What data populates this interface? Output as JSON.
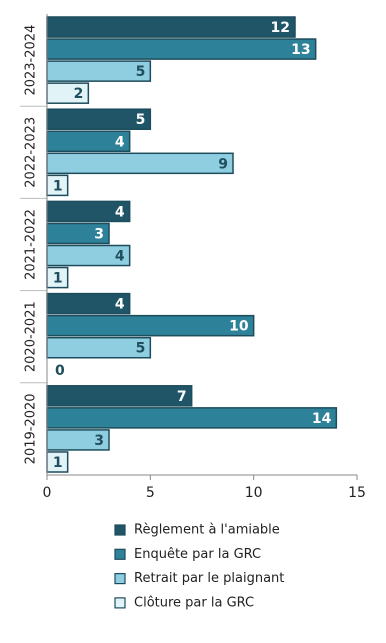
{
  "chart_data": {
    "type": "hbar",
    "categories": [
      "2023-2024",
      "2022-2023",
      "2021-2022",
      "2020-2021",
      "2019-2020"
    ],
    "series": [
      {
        "name": "Règlement à l'amiable",
        "color": "#1f5566",
        "label_color": "#ffffff",
        "values": [
          12,
          5,
          4,
          4,
          7
        ]
      },
      {
        "name": "Enquête par la GRC",
        "color": "#2d8199",
        "label_color": "#ffffff",
        "values": [
          13,
          4,
          3,
          10,
          14
        ]
      },
      {
        "name": "Retrait par le plaignant",
        "color": "#8fcde0",
        "label_color": "#1f4f5e",
        "values": [
          5,
          9,
          4,
          5,
          3
        ]
      },
      {
        "name": "Clôture par la GRC",
        "color": "#e2f3f7",
        "label_color": "#1f4f5e",
        "values": [
          2,
          1,
          1,
          0,
          1
        ]
      }
    ],
    "xlim": [
      0,
      15
    ],
    "xticks": [
      0,
      5,
      10,
      15
    ],
    "legend": "bottom"
  }
}
